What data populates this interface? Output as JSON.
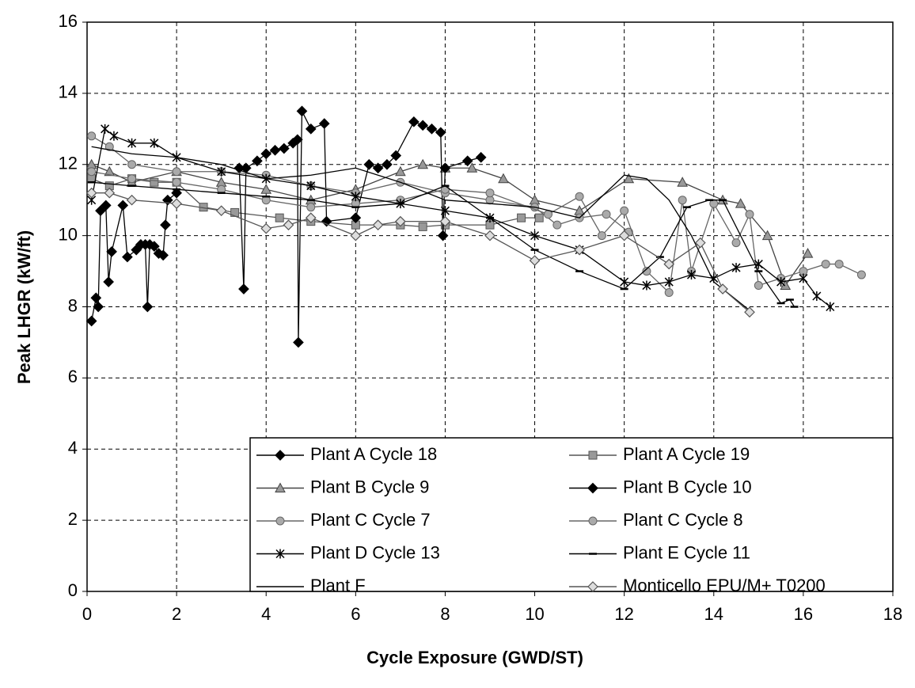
{
  "chart_data": {
    "type": "line",
    "xlabel": "Cycle Exposure (GWD/ST)",
    "ylabel": "Peak LHGR (kW/ft)",
    "xlim": [
      0,
      18
    ],
    "xticks": [
      0,
      2,
      4,
      6,
      8,
      10,
      12,
      14,
      16,
      18
    ],
    "ylim": [
      0,
      16
    ],
    "yticks": [
      0,
      2,
      4,
      6,
      8,
      10,
      12,
      14,
      16
    ],
    "grid": true,
    "legend": "lower right",
    "series": [
      {
        "name": "Plant A Cycle 18",
        "color": "#000000",
        "marker": "diamond",
        "x": [
          0.1,
          0.2,
          0.25,
          0.3,
          0.42,
          0.48,
          0.55,
          0.8,
          0.9,
          1.1,
          1.2,
          1.3,
          1.35,
          1.4,
          1.5,
          1.6,
          1.7,
          1.75,
          1.8,
          2.0
        ],
        "values": [
          7.6,
          8.25,
          8.0,
          10.7,
          10.85,
          8.7,
          9.55,
          10.85,
          9.4,
          9.6,
          9.75,
          9.75,
          8.0,
          9.75,
          9.7,
          9.5,
          9.45,
          10.3,
          11.0,
          11.2
        ]
      },
      {
        "name": "Plant A Cycle 19",
        "color": "#555555",
        "marker": "square",
        "x": [
          0.1,
          0.5,
          1.0,
          1.5,
          2.0,
          2.6,
          3.3,
          4.3,
          5.0,
          6.0,
          7.0,
          7.5,
          8.0,
          9.0,
          9.7,
          10.1
        ],
        "values": [
          11.6,
          11.4,
          11.6,
          11.5,
          11.5,
          10.8,
          10.65,
          10.5,
          10.4,
          10.3,
          10.3,
          10.25,
          10.3,
          10.3,
          10.5,
          10.5
        ]
      },
      {
        "name": "Plant B Cycle 9",
        "color": "#444444",
        "marker": "triangle",
        "x": [
          0.1,
          0.5,
          1.0,
          2.0,
          3.0,
          4.0,
          5.0,
          6.0,
          7.0,
          7.5,
          8.0,
          8.6,
          9.3,
          10.0,
          11.0,
          12.1,
          13.3,
          14.2,
          14.6,
          15.2,
          15.6,
          16.1
        ],
        "values": [
          12.0,
          11.8,
          11.5,
          11.8,
          11.5,
          11.3,
          11.0,
          11.3,
          11.8,
          12.0,
          11.9,
          11.9,
          11.6,
          11.0,
          10.7,
          11.6,
          11.5,
          11.0,
          10.9,
          10.0,
          8.6,
          9.5
        ]
      },
      {
        "name": "Plant B Cycle 10",
        "color": "#000000",
        "marker": "diamond",
        "x": [
          3.4,
          3.5,
          3.55,
          3.8,
          4.0,
          4.2,
          4.4,
          4.6,
          4.7,
          4.72,
          4.8,
          5.0,
          5.3,
          5.35,
          6.0,
          6.3,
          6.5,
          6.7,
          6.9,
          7.3,
          7.5,
          7.7,
          7.9,
          7.95,
          8.0,
          8.5,
          8.8
        ],
        "values": [
          11.9,
          8.5,
          11.9,
          12.1,
          12.3,
          12.4,
          12.45,
          12.6,
          12.7,
          7.0,
          13.5,
          13.0,
          13.15,
          10.4,
          10.5,
          12.0,
          11.9,
          12.0,
          12.25,
          13.2,
          13.1,
          13.0,
          12.9,
          10.0,
          11.9,
          12.1,
          12.2
        ]
      },
      {
        "name": "Plant C Cycle 7",
        "color": "#666666",
        "marker": "circle",
        "x": [
          0.1,
          0.5,
          1.0,
          2.0,
          3.0,
          4.0,
          5.0,
          6.0,
          7.0,
          8.0,
          9.0,
          10.0,
          10.5,
          11.0,
          11.6,
          12.1
        ],
        "values": [
          12.8,
          12.5,
          12.0,
          11.8,
          11.8,
          11.7,
          11.4,
          11.2,
          11.5,
          11.2,
          11.0,
          10.8,
          10.3,
          10.5,
          10.6,
          10.1
        ]
      },
      {
        "name": "Plant C Cycle 8",
        "color": "#666666",
        "marker": "circle",
        "x": [
          0.1,
          1.0,
          2.0,
          3.0,
          4.0,
          5.0,
          6.0,
          7.0,
          8.0,
          9.0,
          10.3,
          11.0,
          11.5,
          12.0,
          12.5,
          13.0,
          13.3,
          13.5,
          14.0,
          14.5,
          14.8,
          15.0,
          15.5,
          16.0,
          16.5,
          16.8,
          17.3
        ],
        "values": [
          11.8,
          11.6,
          11.5,
          11.3,
          11.0,
          10.8,
          10.9,
          11.0,
          11.3,
          11.2,
          10.6,
          11.1,
          10.0,
          10.7,
          9.0,
          8.4,
          11.0,
          9.0,
          10.9,
          9.8,
          10.6,
          8.6,
          8.8,
          9.0,
          9.2,
          9.2,
          8.9
        ]
      },
      {
        "name": "Plant D Cycle 13",
        "color": "#000000",
        "marker": "asterisk",
        "x": [
          0.1,
          0.4,
          0.6,
          1.0,
          1.5,
          2.0,
          3.0,
          4.0,
          5.0,
          6.0,
          7.0,
          8.0,
          9.0,
          10.0,
          11.0,
          12.0,
          12.5,
          13.0,
          13.5,
          14.0,
          14.5,
          15.0,
          15.5,
          16.0,
          16.3,
          16.6
        ],
        "values": [
          11.0,
          13.0,
          12.8,
          12.6,
          12.6,
          12.2,
          11.8,
          11.6,
          11.4,
          11.1,
          10.9,
          10.7,
          10.5,
          10.0,
          9.6,
          8.7,
          8.6,
          8.7,
          8.9,
          8.8,
          9.1,
          9.2,
          8.7,
          8.8,
          8.3,
          8.0
        ]
      },
      {
        "name": "Plant E Cycle 11",
        "color": "#000000",
        "marker": "dash",
        "x": [
          0.1,
          1.0,
          2.0,
          3.0,
          4.0,
          5.0,
          6.0,
          7.0,
          8.0,
          9.0,
          10.0,
          11.0,
          12.0,
          12.8,
          13.4,
          13.9,
          14.2,
          15.0,
          15.5,
          15.7,
          15.8
        ],
        "values": [
          11.5,
          11.4,
          11.3,
          11.2,
          11.1,
          11.0,
          10.8,
          10.9,
          11.4,
          10.5,
          9.6,
          9.0,
          8.5,
          9.4,
          10.8,
          11.0,
          11.0,
          9.0,
          8.1,
          8.2,
          8.0
        ]
      },
      {
        "name": "Plant F",
        "color": "#000000",
        "marker": "none",
        "x": [
          0.1,
          1.0,
          2.0,
          3.0,
          4.0,
          5.0,
          6.0,
          7.0,
          8.0,
          9.0,
          10.0,
          11.0,
          12.0,
          12.5,
          13.0,
          13.5,
          14.0,
          14.5,
          14.8
        ],
        "values": [
          12.5,
          12.3,
          12.2,
          12.0,
          11.6,
          11.7,
          11.9,
          11.5,
          11.0,
          10.9,
          10.8,
          10.5,
          11.7,
          11.6,
          11.0,
          10.0,
          8.7,
          8.2,
          7.9
        ]
      },
      {
        "name": "Monticello EPU/M+ T0200",
        "color": "#555555",
        "marker": "diamond-open",
        "x": [
          0.1,
          0.5,
          1.0,
          2.0,
          3.0,
          4.0,
          4.5,
          5.0,
          6.0,
          6.5,
          7.0,
          8.0,
          9.0,
          10.0,
          11.0,
          12.0,
          13.0,
          13.7,
          14.2,
          14.8
        ],
        "values": [
          11.2,
          11.2,
          11.0,
          10.9,
          10.7,
          10.2,
          10.3,
          10.5,
          10.0,
          10.3,
          10.4,
          10.4,
          10.0,
          9.3,
          9.6,
          10.0,
          9.2,
          9.8,
          8.5,
          7.85
        ]
      }
    ]
  }
}
